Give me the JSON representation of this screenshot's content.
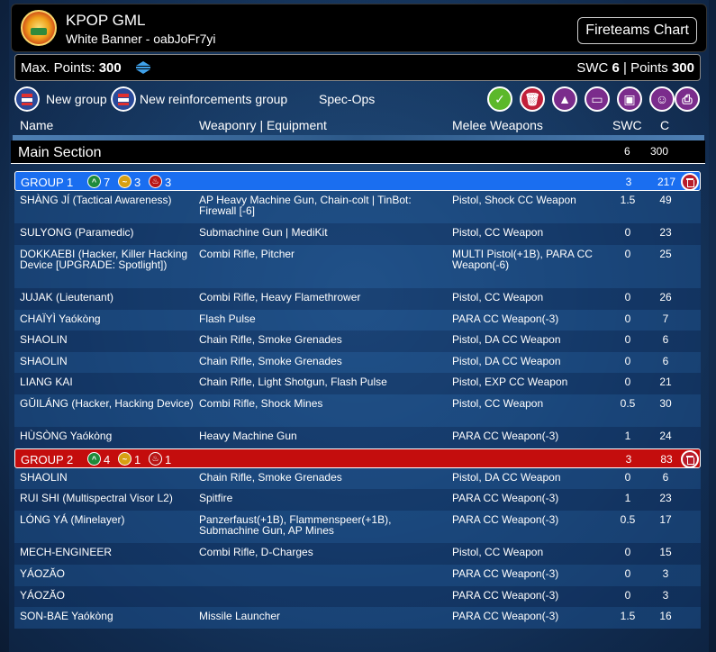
{
  "header": {
    "title": "KPOP GML",
    "subtitle": "White Banner - oabJoFr7yi",
    "fireteams_label": "Fireteams Chart"
  },
  "points": {
    "max_label": "Max. Points:",
    "max_value": "300",
    "swc_label": "SWC",
    "swc_value": "6",
    "points_label": "| Points",
    "points_value": "300"
  },
  "toolbar": {
    "new_group": "New group",
    "new_reinforcements": "New reinforcements group",
    "spec_ops": "Spec-Ops",
    "actions": [
      "confirm-icon",
      "trash-icon",
      "warning-icon",
      "chat-icon",
      "save-icon",
      "face-icon",
      "print-icon"
    ]
  },
  "columns": {
    "name": "Name",
    "weaponry": "Weaponry | Equipment",
    "melee": "Melee Weapons",
    "swc": "SWC",
    "c": "C"
  },
  "main_section": {
    "title": "Main Section",
    "swc": "6",
    "c": "300"
  },
  "groups": [
    {
      "label": "GROUP 1",
      "color": "#1a6ef0",
      "badges": [
        {
          "type": "regular",
          "count": "7"
        },
        {
          "type": "irregular",
          "count": "3"
        },
        {
          "type": "impetuous",
          "count": "3"
        }
      ],
      "swc": "3",
      "c": "217",
      "units": [
        {
          "name": "SHÀNG JÍ (Tactical Awareness)",
          "weapons": "AP Heavy Machine Gun, Chain-colt | TinBot: Firewall [-6]",
          "melee": "Pistol, Shock CC Weapon",
          "swc": "1.5",
          "c": "49",
          "h": 36
        },
        {
          "name": "SULYONG (Paramedic)",
          "weapons": "Submachine Gun | MediKit",
          "melee": "Pistol, CC Weapon",
          "swc": "0",
          "c": "23",
          "h": 24
        },
        {
          "name": "DOKKAEBI (Hacker, Killer Hacking Device [UPGRADE: Spotlight])",
          "weapons": "Combi Rifle, Pitcher",
          "melee": "MULTI Pistol(+1B), PARA CC Weapon(-6)",
          "swc": "0",
          "c": "25",
          "h": 48
        },
        {
          "name": "JUJAK (Lieutenant)",
          "weapons": "Combi Rifle, Heavy Flamethrower",
          "melee": "Pistol, CC Weapon",
          "swc": "0",
          "c": "26",
          "h": 24
        },
        {
          "name": "CHAÏYÌ Yaókòng",
          "weapons": "Flash Pulse",
          "melee": "PARA CC Weapon(-3)",
          "swc": "0",
          "c": "7",
          "h": 23
        },
        {
          "name": "SHAOLIN",
          "weapons": "Chain Rifle, Smoke Grenades",
          "melee": "Pistol, DA CC Weapon",
          "swc": "0",
          "c": "6",
          "h": 24
        },
        {
          "name": "SHAOLIN",
          "weapons": "Chain Rifle, Smoke Grenades",
          "melee": "Pistol, DA CC Weapon",
          "swc": "0",
          "c": "6",
          "h": 23
        },
        {
          "name": "LIANG KAI",
          "weapons": "Chain Rifle, Light Shotgun, Flash Pulse",
          "melee": "Pistol, EXP CC Weapon",
          "swc": "0",
          "c": "21",
          "h": 24
        },
        {
          "name": "GŬILÁNG (Hacker, Hacking Device)",
          "weapons": "Combi Rifle, Shock Mines",
          "melee": "Pistol, CC Weapon",
          "swc": "0.5",
          "c": "30",
          "h": 36
        },
        {
          "name": "HÙSÒNG Yaókòng",
          "weapons": "Heavy Machine Gun",
          "melee": "PARA CC Weapon(-3)",
          "swc": "1",
          "c": "24",
          "h": 24
        }
      ]
    },
    {
      "label": "GROUP 2",
      "color": "#c40d0d",
      "badges": [
        {
          "type": "regular",
          "count": "4"
        },
        {
          "type": "irregular",
          "count": "1"
        },
        {
          "type": "impetuous",
          "count": "1"
        }
      ],
      "swc": "3",
      "c": "83",
      "units": [
        {
          "name": "SHAOLIN",
          "weapons": "Chain Rifle, Smoke Grenades",
          "melee": "Pistol, DA CC Weapon",
          "swc": "0",
          "c": "6",
          "h": 23
        },
        {
          "name": "RUI SHI (Multispectral Visor L2)",
          "weapons": "Spitfire",
          "melee": "PARA CC Weapon(-3)",
          "swc": "1",
          "c": "23",
          "h": 24
        },
        {
          "name": "LÓNG YÁ (Minelayer)",
          "weapons": "Panzerfaust(+1B), Flammenspeer(+1B), Submachine Gun, AP Mines",
          "melee": "PARA CC Weapon(-3)",
          "swc": "0.5",
          "c": "17",
          "h": 36
        },
        {
          "name": "MECH-ENGINEER",
          "weapons": "Combi Rifle, D-Charges",
          "melee": "Pistol, CC Weapon",
          "swc": "0",
          "c": "15",
          "h": 24
        },
        {
          "name": "YÁOZĂO",
          "weapons": "",
          "melee": "PARA CC Weapon(-3)",
          "swc": "0",
          "c": "3",
          "h": 24
        },
        {
          "name": "YÁOZĂO",
          "weapons": "",
          "melee": "PARA CC Weapon(-3)",
          "swc": "0",
          "c": "3",
          "h": 23
        },
        {
          "name": "SON-BAE Yaókòng",
          "weapons": "Missile Launcher",
          "melee": "PARA CC Weapon(-3)",
          "swc": "1.5",
          "c": "16",
          "h": 24
        }
      ]
    }
  ]
}
